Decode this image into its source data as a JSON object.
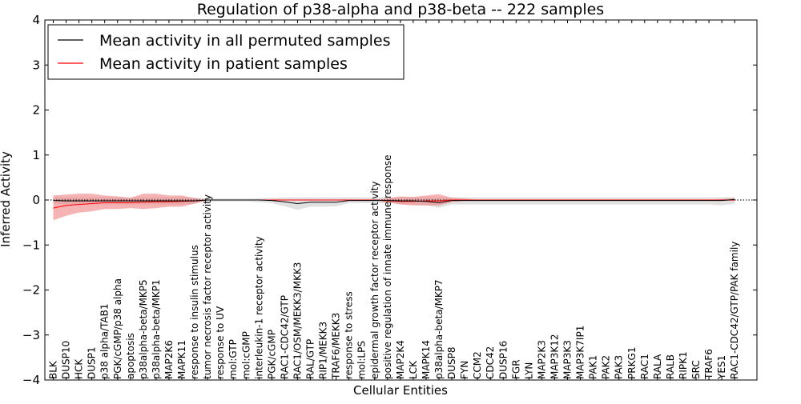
{
  "chart_data": {
    "type": "line",
    "title": "Regulation of p38-alpha and p38-beta -- 222 samples",
    "xlabel": "Cellular Entities",
    "ylabel": "Inferred Activity",
    "ylim": [
      -4,
      4
    ],
    "yticks": [
      -4,
      -3,
      -2,
      -1,
      0,
      1,
      2,
      3,
      4
    ],
    "ytick_labels": [
      "−4",
      "−3",
      "−2",
      "−1",
      "0",
      "1",
      "2",
      "3",
      "4"
    ],
    "legend_position": "top-left",
    "categories": [
      "BLK",
      "DUSP10",
      "HCK",
      "DUSP1",
      "p38 alpha/TAB1",
      "PGK/cGMP/p38 alpha",
      "apoptosis",
      "p38alpha-beta/MKP5",
      "p38alpha-beta/MKP1",
      "MAP2K6",
      "MAPK11",
      "response to insulin stimulus",
      "tumor necrosis factor receptor activity",
      "response to UV",
      "mol:GTP",
      "mol:cGMP",
      "interleukin-1 receptor activity",
      "PGK/cGMP",
      "RAC1-CDC42/GTP",
      "RAC1/OSM/MEKK3/MKK3",
      "RAL/GTP",
      "RIP1/MEKK3",
      "TRAF6/MEKK3",
      "response to stress",
      "mol:LPS",
      "epidermal growth factor receptor activity",
      "positive regulation of innate immune response",
      "MAP2K4",
      "LCK",
      "MAPK14",
      "p38alpha-beta/MKP7",
      "DUSP8",
      "FYN",
      "CCM2",
      "CDC42",
      "DUSP16",
      "FGR",
      "LYN",
      "MAP2K3",
      "MAP3K12",
      "MAP3K3",
      "MAP3K7IP1",
      "PAK1",
      "PAK2",
      "PAK3",
      "PRKG1",
      "RAC1",
      "RALA",
      "RALB",
      "RIPK1",
      "SRC",
      "TRAF6",
      "YES1",
      "RAC1-CDC42/GTP/PAK family"
    ],
    "series": [
      {
        "name": "Mean activity in all permuted samples",
        "color": "#000000",
        "band_color": "#aaaaaa",
        "values": [
          -0.01,
          -0.02,
          -0.02,
          -0.02,
          -0.02,
          -0.02,
          -0.02,
          -0.02,
          -0.02,
          -0.02,
          -0.02,
          -0.02,
          0,
          0,
          0,
          0,
          0,
          -0.01,
          -0.04,
          -0.08,
          -0.05,
          -0.05,
          -0.05,
          -0.01,
          -0.01,
          -0.01,
          -0.01,
          -0.02,
          -0.02,
          -0.03,
          -0.06,
          -0.01,
          -0.01,
          -0.01,
          -0.01,
          -0.01,
          -0.01,
          -0.01,
          -0.01,
          -0.01,
          -0.01,
          -0.01,
          -0.01,
          -0.01,
          -0.01,
          -0.01,
          -0.01,
          -0.01,
          -0.01,
          -0.01,
          -0.01,
          -0.01,
          -0.01,
          0.01
        ],
        "lower": [
          -0.08,
          -0.1,
          -0.1,
          -0.1,
          -0.1,
          -0.1,
          -0.1,
          -0.1,
          -0.1,
          -0.1,
          -0.1,
          -0.08,
          -0.03,
          -0.03,
          -0.03,
          -0.03,
          -0.05,
          -0.07,
          -0.14,
          -0.22,
          -0.15,
          -0.15,
          -0.14,
          -0.07,
          -0.07,
          -0.07,
          -0.07,
          -0.09,
          -0.1,
          -0.12,
          -0.17,
          -0.1,
          -0.1,
          -0.1,
          -0.1,
          -0.1,
          -0.1,
          -0.1,
          -0.1,
          -0.1,
          -0.1,
          -0.1,
          -0.1,
          -0.1,
          -0.1,
          -0.1,
          -0.1,
          -0.1,
          -0.1,
          -0.1,
          -0.1,
          -0.1,
          -0.12,
          -0.08
        ],
        "upper": [
          0.06,
          0.06,
          0.06,
          0.06,
          0.06,
          0.06,
          0.06,
          0.06,
          0.06,
          0.06,
          0.06,
          0.06,
          0.03,
          0.03,
          0.03,
          0.03,
          0.04,
          0.05,
          0.06,
          0.06,
          0.06,
          0.06,
          0.06,
          0.06,
          0.06,
          0.06,
          0.06,
          0.06,
          0.06,
          0.06,
          0.06,
          0.06,
          0.06,
          0.06,
          0.06,
          0.06,
          0.06,
          0.06,
          0.06,
          0.06,
          0.06,
          0.06,
          0.06,
          0.06,
          0.06,
          0.06,
          0.06,
          0.06,
          0.06,
          0.06,
          0.06,
          0.06,
          0.06,
          0.06
        ]
      },
      {
        "name": "Mean activity in patient samples",
        "color": "#ff0000",
        "band_color": "#f08080",
        "values": [
          -0.18,
          -0.12,
          -0.1,
          -0.08,
          -0.06,
          -0.06,
          -0.06,
          -0.05,
          -0.04,
          -0.04,
          -0.03,
          -0.02,
          0,
          0,
          0,
          0,
          0,
          0,
          0,
          0,
          0,
          0,
          0,
          0,
          0,
          0,
          -0.02,
          -0.03,
          -0.03,
          -0.02,
          -0.02,
          0,
          0,
          0,
          0,
          0,
          0,
          0,
          0,
          0,
          0,
          0,
          0,
          0,
          0,
          0,
          0,
          0,
          0,
          0,
          0,
          0,
          0,
          0
        ],
        "lower": [
          -0.45,
          -0.35,
          -0.28,
          -0.25,
          -0.2,
          -0.2,
          -0.18,
          -0.2,
          -0.18,
          -0.15,
          -0.15,
          -0.08,
          0,
          0,
          0,
          0,
          0,
          0,
          0,
          0,
          0,
          0,
          0,
          0,
          0,
          0,
          -0.05,
          -0.1,
          -0.12,
          -0.12,
          -0.12,
          -0.05,
          -0.02,
          0,
          0,
          0,
          0,
          0,
          0,
          0,
          0,
          0,
          0,
          0,
          0,
          0,
          0,
          0,
          0,
          0,
          0,
          0,
          -0.02,
          -0.02
        ],
        "upper": [
          0.1,
          0.12,
          0.14,
          0.14,
          0.1,
          0.08,
          0.05,
          0.14,
          0.14,
          0.1,
          0.1,
          0.04,
          0,
          0,
          0,
          0,
          0,
          0,
          0,
          0,
          0,
          0,
          0,
          0,
          0,
          0,
          0.04,
          0.08,
          0.07,
          0.1,
          0.13,
          0.05,
          0.03,
          0,
          0,
          0,
          0,
          0,
          0,
          0,
          0,
          0,
          0,
          0,
          0,
          0,
          0,
          0,
          0,
          0,
          0,
          0,
          0.02,
          0.05
        ]
      }
    ]
  }
}
